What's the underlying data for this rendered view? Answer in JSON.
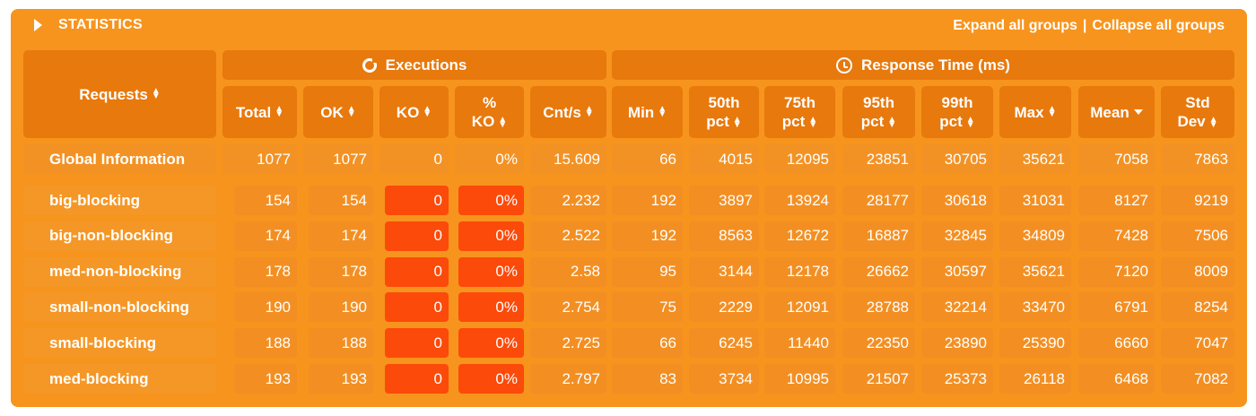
{
  "header": {
    "title": "STATISTICS",
    "expand_label": "Expand all groups",
    "separator": "|",
    "collapse_label": "Collapse all groups"
  },
  "groups": {
    "executions": "Executions",
    "response_time": "Response Time (ms)"
  },
  "columns": {
    "requests": "Requests",
    "total": "Total",
    "ok": "OK",
    "ko": "KO",
    "pct_ko_line1": "%",
    "pct_ko_line2": "KO",
    "cnt_s": "Cnt/s",
    "min": "Min",
    "p50_line1": "50th",
    "p50_line2": "pct",
    "p75_line1": "75th",
    "p75_line2": "pct",
    "p95_line1": "95th",
    "p95_line2": "pct",
    "p99_line1": "99th",
    "p99_line2": "pct",
    "max": "Max",
    "mean": "Mean",
    "std_line1": "Std",
    "std_line2": "Dev"
  },
  "global": {
    "name": "Global Information",
    "total": "1077",
    "ok": "1077",
    "ko": "0",
    "pct_ko": "0%",
    "cnt_s": "15.609",
    "min": "66",
    "p50": "4015",
    "p75": "12095",
    "p95": "23851",
    "p99": "30705",
    "max": "35621",
    "mean": "7058",
    "std": "7863"
  },
  "rows": [
    {
      "name": "big-blocking",
      "total": "154",
      "ok": "154",
      "ko": "0",
      "pct_ko": "0%",
      "cnt_s": "2.232",
      "min": "192",
      "p50": "3897",
      "p75": "13924",
      "p95": "28177",
      "p99": "30618",
      "max": "31031",
      "mean": "8127",
      "std": "9219"
    },
    {
      "name": "big-non-blocking",
      "total": "174",
      "ok": "174",
      "ko": "0",
      "pct_ko": "0%",
      "cnt_s": "2.522",
      "min": "192",
      "p50": "8563",
      "p75": "12672",
      "p95": "16887",
      "p99": "32845",
      "max": "34809",
      "mean": "7428",
      "std": "7506"
    },
    {
      "name": "med-non-blocking",
      "total": "178",
      "ok": "178",
      "ko": "0",
      "pct_ko": "0%",
      "cnt_s": "2.58",
      "min": "95",
      "p50": "3144",
      "p75": "12178",
      "p95": "26662",
      "p99": "30597",
      "max": "35621",
      "mean": "7120",
      "std": "8009"
    },
    {
      "name": "small-non-blocking",
      "total": "190",
      "ok": "190",
      "ko": "0",
      "pct_ko": "0%",
      "cnt_s": "2.754",
      "min": "75",
      "p50": "2229",
      "p75": "12091",
      "p95": "28788",
      "p99": "32214",
      "max": "33470",
      "mean": "6791",
      "std": "8254"
    },
    {
      "name": "small-blocking",
      "total": "188",
      "ok": "188",
      "ko": "0",
      "pct_ko": "0%",
      "cnt_s": "2.725",
      "min": "66",
      "p50": "6245",
      "p75": "11440",
      "p95": "22350",
      "p99": "23890",
      "max": "25390",
      "mean": "6660",
      "std": "7047"
    },
    {
      "name": "med-blocking",
      "total": "193",
      "ok": "193",
      "ko": "0",
      "pct_ko": "0%",
      "cnt_s": "2.797",
      "min": "83",
      "p50": "3734",
      "p75": "10995",
      "p95": "21507",
      "p99": "25373",
      "max": "26118",
      "mean": "6468",
      "std": "7082"
    }
  ]
}
